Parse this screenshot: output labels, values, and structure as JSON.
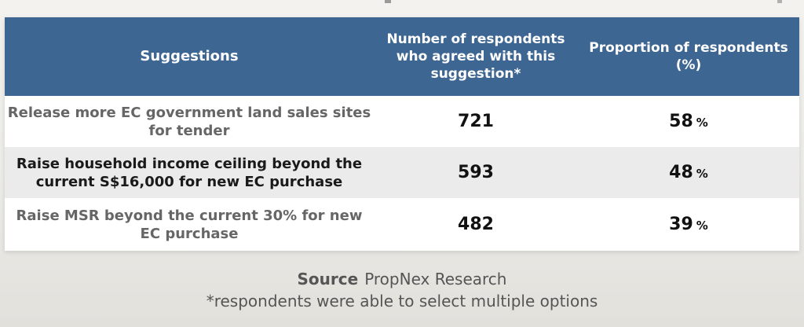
{
  "table": {
    "headers": [
      "Suggestions",
      "Number of respondents who agreed with this suggestion*",
      "Proportion of respondents (%)"
    ],
    "rows": [
      {
        "suggestion": "Release more EC government land sales sites for tender",
        "count": "721",
        "proportion": "58",
        "unit": "%"
      },
      {
        "suggestion": "Raise household income ceiling beyond the current S$16,000 for new EC purchase",
        "count": "593",
        "proportion": "48",
        "unit": "%"
      },
      {
        "suggestion": "Raise MSR beyond the current 30% for new EC purchase",
        "count": "482",
        "proportion": "39",
        "unit": "%"
      }
    ]
  },
  "footer": {
    "source_label": "Source",
    "source_value": "PropNex Research",
    "note": "*respondents were able to select multiple options"
  }
}
